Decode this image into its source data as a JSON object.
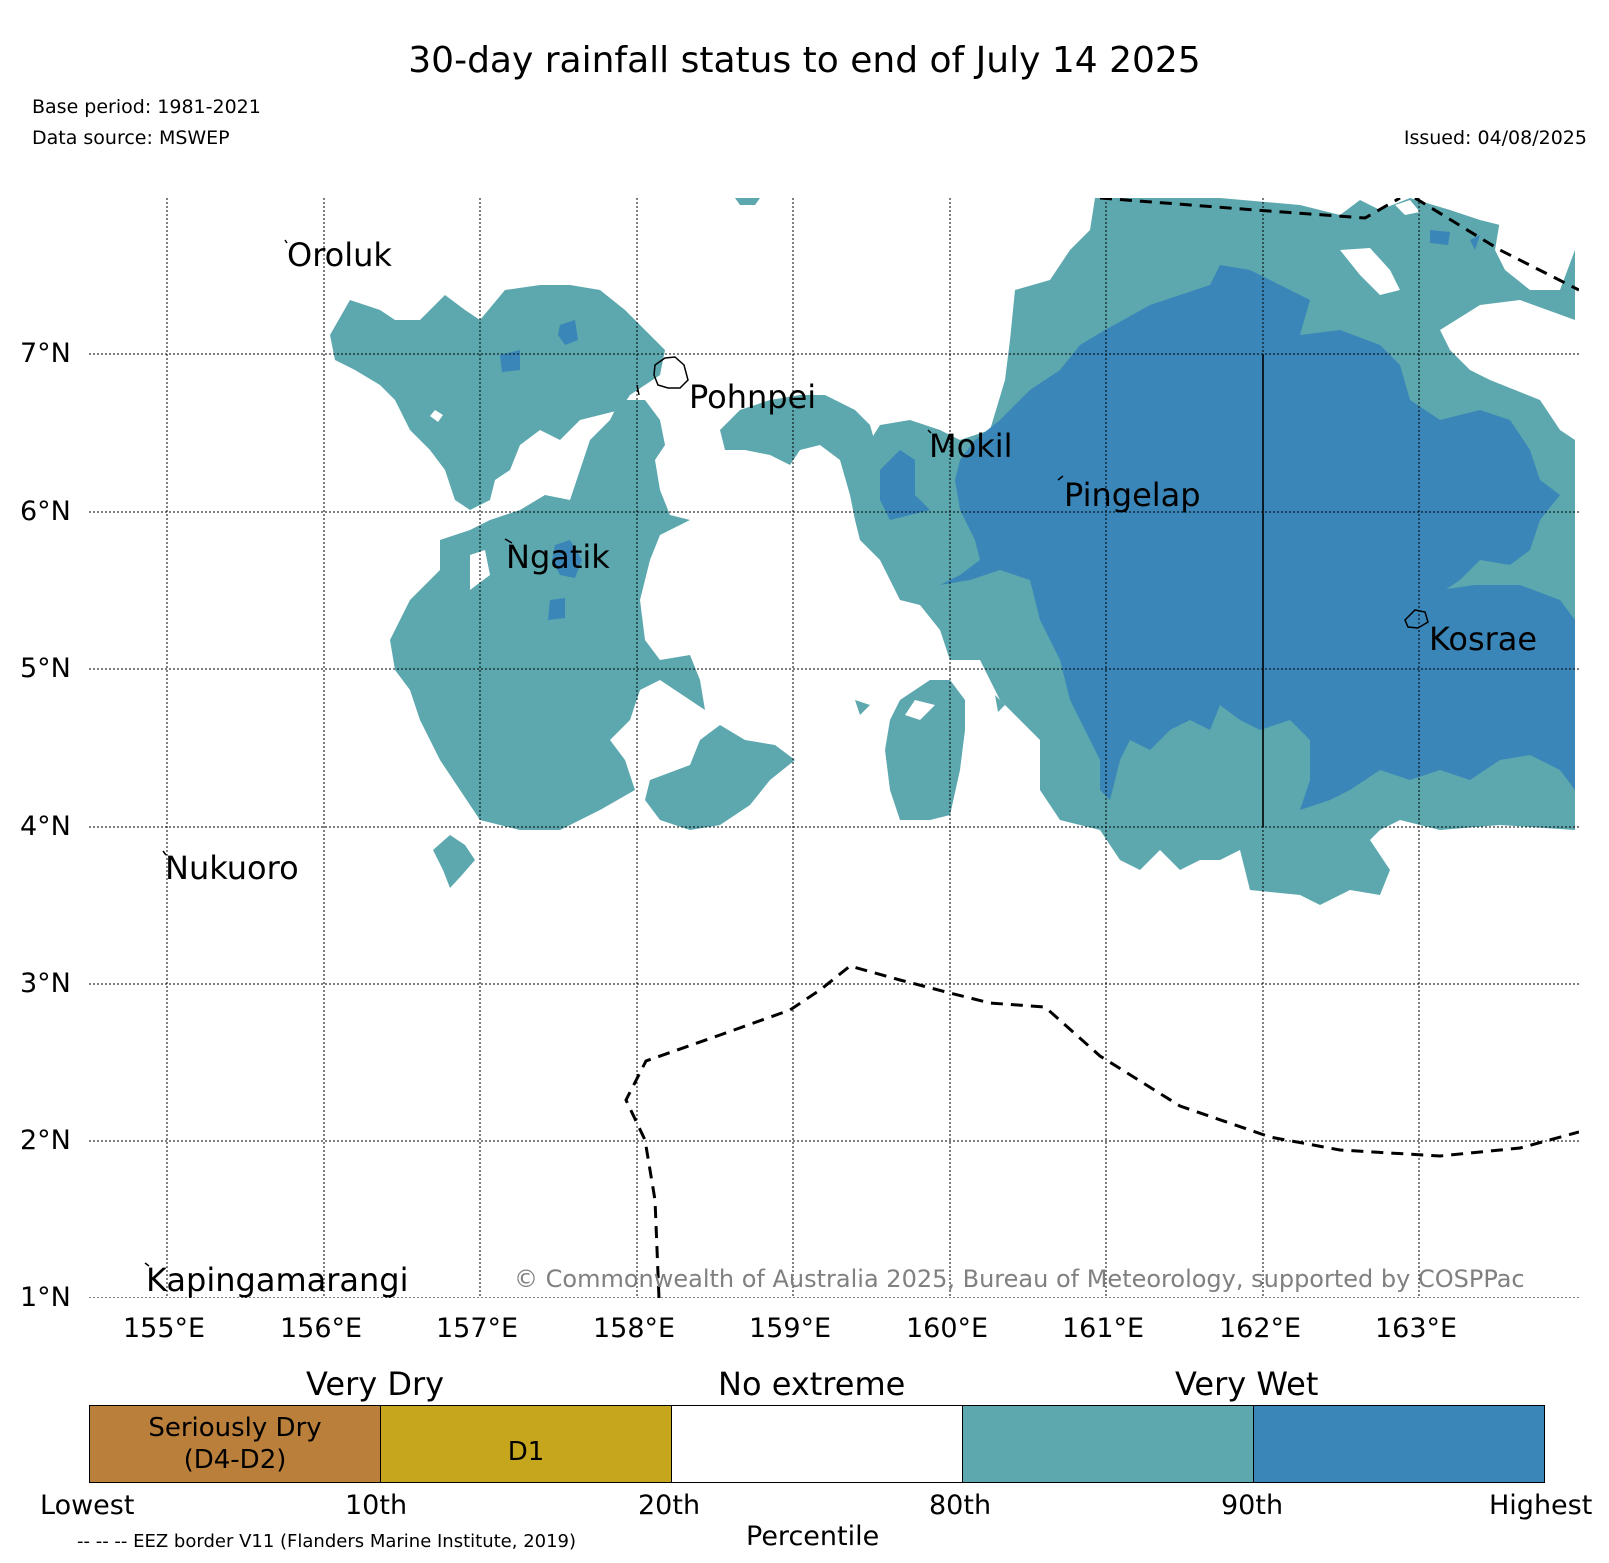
{
  "title": "30-day rainfall status to end of July 14 2025",
  "base_period": "Base period: 1981-2021",
  "data_source": "Data source: MSWEP",
  "issued": "Issued: 04/08/2025",
  "credit": "© Commonwealth of Australia 2025, Bureau of Meteorology, supported by COSPPac",
  "eez_note": "-- -- -- EEZ border V11 (Flanders Marine Institute, 2019)",
  "map": {
    "lon_labels": [
      "155°E",
      "156°E",
      "157°E",
      "158°E",
      "159°E",
      "160°E",
      "161°E",
      "162°E",
      "163°E"
    ],
    "lat_labels": [
      "7°N",
      "6°N",
      "5°N",
      "4°N",
      "3°N",
      "2°N",
      "1°N"
    ],
    "places": [
      "Oroluk",
      "Pohnpei",
      "Mokil",
      "Pingelap",
      "Ngatik",
      "Kosrae",
      "Nukuoro",
      "Kapingamarangi"
    ]
  },
  "legend": {
    "categories": [
      "Very Dry",
      "No extreme",
      "Very Wet"
    ],
    "boxes": [
      {
        "label_line1": "Seriously Dry",
        "label_line2": "(D4-D2)",
        "color": "#b97f3b"
      },
      {
        "label_line1": "D1",
        "label_line2": "",
        "color": "#c6a61d"
      },
      {
        "label_line1": "",
        "label_line2": "",
        "color": "#ffffff"
      },
      {
        "label_line1": "",
        "label_line2": "",
        "color": "#5ca8ae"
      },
      {
        "label_line1": "",
        "label_line2": "",
        "color": "#3a86b8"
      }
    ],
    "percentiles": [
      "Lowest",
      "10th",
      "20th",
      "80th",
      "90th",
      "Highest"
    ],
    "axis_label": "Percentile"
  },
  "colors": {
    "wet": "#5ca8ae",
    "very_wet": "#3a86b8"
  }
}
